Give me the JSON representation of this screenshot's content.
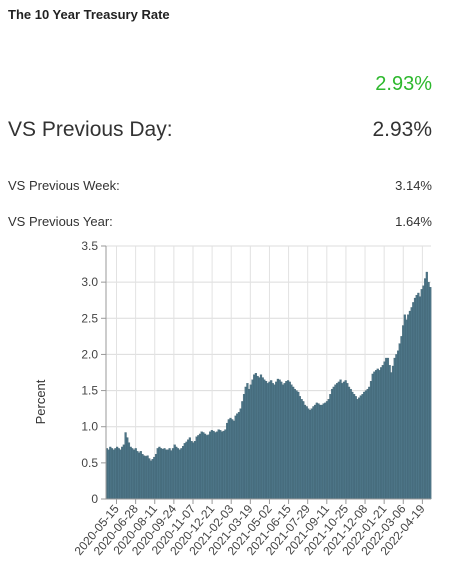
{
  "header": {
    "title": "The 10 Year Treasury Rate",
    "current_value": "2.93%"
  },
  "comparisons": {
    "previous_day_label": "VS Previous Day:",
    "previous_day_value": "2.93%",
    "previous_week_label": "VS Previous Week:",
    "previous_week_value": "3.14%",
    "previous_year_label": "VS Previous Year:",
    "previous_year_value": "1.64%"
  },
  "colors": {
    "accent_green": "#2db82d",
    "bar_fill": "#4d7587",
    "bar_stroke": "#3a5d6c"
  },
  "chart_data": {
    "type": "bar",
    "title": "",
    "xlabel": "",
    "ylabel": "Percent",
    "ylim": [
      0,
      3.5
    ],
    "yticks": [
      "0",
      "0.5",
      "1.0",
      "1.5",
      "2.0",
      "2.5",
      "3.0",
      "3.5"
    ],
    "grid": true,
    "xtick_labels": [
      "2020-05-15",
      "2020-06-28",
      "2020-08-11",
      "2020-09-24",
      "2020-11-07",
      "2020-12-21",
      "2021-02-03",
      "2021-03-19",
      "2021-05-02",
      "2021-06-15",
      "2021-07-29",
      "2021-09-11",
      "2021-10-25",
      "2021-12-08",
      "2022-01-21",
      "2022-03-06",
      "2022-04-19"
    ],
    "series": [
      {
        "values": [
          0.7,
          0.68,
          0.72,
          0.7,
          0.68,
          0.7,
          0.72,
          0.7,
          0.68,
          0.72,
          0.75,
          0.92,
          0.85,
          0.78,
          0.72,
          0.7,
          0.68,
          0.7,
          0.66,
          0.64,
          0.66,
          0.62,
          0.6,
          0.59,
          0.6,
          0.56,
          0.53,
          0.55,
          0.58,
          0.62,
          0.7,
          0.72,
          0.7,
          0.69,
          0.7,
          0.68,
          0.68,
          0.7,
          0.67,
          0.7,
          0.75,
          0.72,
          0.7,
          0.68,
          0.7,
          0.73,
          0.77,
          0.79,
          0.82,
          0.85,
          0.8,
          0.78,
          0.8,
          0.86,
          0.88,
          0.9,
          0.93,
          0.92,
          0.9,
          0.88,
          0.89,
          0.93,
          0.95,
          0.94,
          0.92,
          0.93,
          0.96,
          0.95,
          0.93,
          0.94,
          0.96,
          1.05,
          1.1,
          1.12,
          1.1,
          1.08,
          1.15,
          1.18,
          1.2,
          1.25,
          1.35,
          1.45,
          1.55,
          1.6,
          1.52,
          1.58,
          1.65,
          1.72,
          1.74,
          1.7,
          1.68,
          1.72,
          1.68,
          1.65,
          1.63,
          1.6,
          1.62,
          1.64,
          1.6,
          1.58,
          1.62,
          1.66,
          1.65,
          1.62,
          1.58,
          1.6,
          1.63,
          1.64,
          1.62,
          1.58,
          1.55,
          1.52,
          1.5,
          1.48,
          1.42,
          1.38,
          1.35,
          1.3,
          1.28,
          1.25,
          1.23,
          1.25,
          1.28,
          1.3,
          1.33,
          1.32,
          1.3,
          1.3,
          1.32,
          1.33,
          1.35,
          1.38,
          1.45,
          1.52,
          1.55,
          1.58,
          1.6,
          1.62,
          1.65,
          1.6,
          1.62,
          1.64,
          1.6,
          1.55,
          1.52,
          1.48,
          1.45,
          1.42,
          1.38,
          1.4,
          1.43,
          1.45,
          1.48,
          1.5,
          1.52,
          1.55,
          1.63,
          1.73,
          1.76,
          1.78,
          1.8,
          1.78,
          1.82,
          1.85,
          1.9,
          1.95,
          1.95,
          1.85,
          1.75,
          1.84,
          1.95,
          2.0,
          2.05,
          2.15,
          2.25,
          2.4,
          2.55,
          2.48,
          2.55,
          2.6,
          2.65,
          2.72,
          2.78,
          2.82,
          2.85,
          2.8,
          2.9,
          2.95,
          3.05,
          3.14,
          3.0,
          2.93
        ]
      }
    ]
  }
}
